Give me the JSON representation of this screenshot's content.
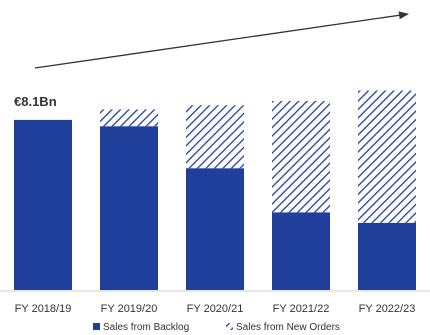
{
  "chart_data": {
    "type": "bar",
    "stacked": true,
    "categories": [
      "FY 2018/19",
      "FY 2019/20",
      "FY 2020/21",
      "FY 2021/22",
      "FY 2022/23"
    ],
    "series": [
      {
        "name": "Sales from Backlog",
        "values": [
          8.1,
          7.8,
          5.8,
          3.7,
          3.2
        ],
        "color": "#1f3f9a",
        "pattern": "solid"
      },
      {
        "name": "Sales from New Orders",
        "values": [
          0,
          0.8,
          3.0,
          5.3,
          6.3
        ],
        "color": "#1f3f9a",
        "pattern": "diagonal-hatch"
      }
    ],
    "ylim": [
      0,
      10
    ],
    "grid": false,
    "legend": "bottom",
    "annotations": [
      {
        "category": "FY 2018/19",
        "text": "€8.1Bn",
        "position": "above"
      }
    ],
    "trend_arrow": {
      "from": "top-left",
      "to": "top-right"
    }
  }
}
